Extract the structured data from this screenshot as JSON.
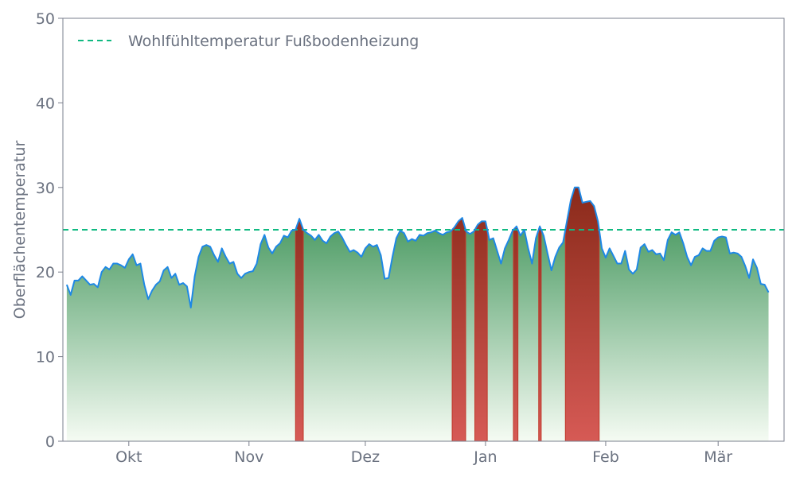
{
  "chart_data": {
    "type": "area",
    "title": "",
    "xlabel": "",
    "ylabel": "Oberflächentemperatur",
    "ylim": [
      0,
      50
    ],
    "yticks": [
      0,
      10,
      20,
      30,
      40,
      50
    ],
    "xlim": [
      "2023-09-14",
      "2024-03-18"
    ],
    "xticks": [
      {
        "date": "2023-10-01",
        "label": "Okt"
      },
      {
        "date": "2023-11-01",
        "label": "Nov"
      },
      {
        "date": "2023-12-01",
        "label": "Dez"
      },
      {
        "date": "2024-01-01",
        "label": "Jan"
      },
      {
        "date": "2024-02-01",
        "label": "Feb"
      },
      {
        "date": "2024-03-01",
        "label": "Mär"
      }
    ],
    "grid": false,
    "legend_position": "top-left",
    "threshold": {
      "name": "Wohlfühltemperatur Fußbodenheizung",
      "value": 25,
      "color": "#10b981"
    },
    "series": [
      {
        "x_start": "2023-09-15",
        "x_step_days": 1,
        "values": [
          18.5,
          17.3,
          19.0,
          19.0,
          19.5,
          19.0,
          18.5,
          18.6,
          18.2,
          20.0,
          20.6,
          20.3,
          21.0,
          21.0,
          20.8,
          20.5,
          21.5,
          22.1,
          20.8,
          21.0,
          18.5,
          16.8,
          17.8,
          18.5,
          18.9,
          20.2,
          20.6,
          19.3,
          19.8,
          18.5,
          18.7,
          18.3,
          15.8,
          19.5,
          21.8,
          23.0,
          23.2,
          23.0,
          22.0,
          21.2,
          22.8,
          21.8,
          21.0,
          21.2,
          19.8,
          19.3,
          19.8,
          20.0,
          20.1,
          21.0,
          23.3,
          24.4,
          22.9,
          22.2,
          23.0,
          23.4,
          24.3,
          24.1,
          24.9,
          25.0,
          26.3,
          25.0,
          24.6,
          24.3,
          23.8,
          24.4,
          23.7,
          23.4,
          24.2,
          24.6,
          24.8,
          24.1,
          23.2,
          22.4,
          22.6,
          22.3,
          21.8,
          22.8,
          23.3,
          23.0,
          23.2,
          22.0,
          19.2,
          19.3,
          21.8,
          24.0,
          24.9,
          24.6,
          23.6,
          23.9,
          23.7,
          24.4,
          24.3,
          24.6,
          24.7,
          24.9,
          24.6,
          24.4,
          24.7,
          24.8,
          25.3,
          26.0,
          26.4,
          24.8,
          24.5,
          24.8,
          25.6,
          26.0,
          26.0,
          23.8,
          24.0,
          22.5,
          21.0,
          22.8,
          23.8,
          24.9,
          25.4,
          24.3,
          25.0,
          22.8,
          21.0,
          24.0,
          25.4,
          24.3,
          22.2,
          20.2,
          21.8,
          22.9,
          23.5,
          26.0,
          28.5,
          30.0,
          30.0,
          28.2,
          28.3,
          28.4,
          27.8,
          26.0,
          22.8,
          21.7,
          22.8,
          21.9,
          21.0,
          21.0,
          22.5,
          20.3,
          19.8,
          20.3,
          22.9,
          23.3,
          22.4,
          22.6,
          22.1,
          22.2,
          21.4,
          23.8,
          24.7,
          24.4,
          24.7,
          23.4,
          21.8,
          20.8,
          21.8,
          22.0,
          22.8,
          22.5,
          22.5,
          23.7,
          24.1,
          24.2,
          24.1,
          22.2,
          22.3,
          22.2,
          21.8,
          20.7,
          19.3,
          21.5,
          20.5,
          18.6,
          18.5,
          17.6
        ],
        "line_color": "#1e88e5",
        "fill_below_threshold": [
          "#4a9a62",
          "#f5fbf3"
        ],
        "fill_above_threshold": [
          "#8a2a1a",
          "#d65a55"
        ]
      }
    ]
  }
}
